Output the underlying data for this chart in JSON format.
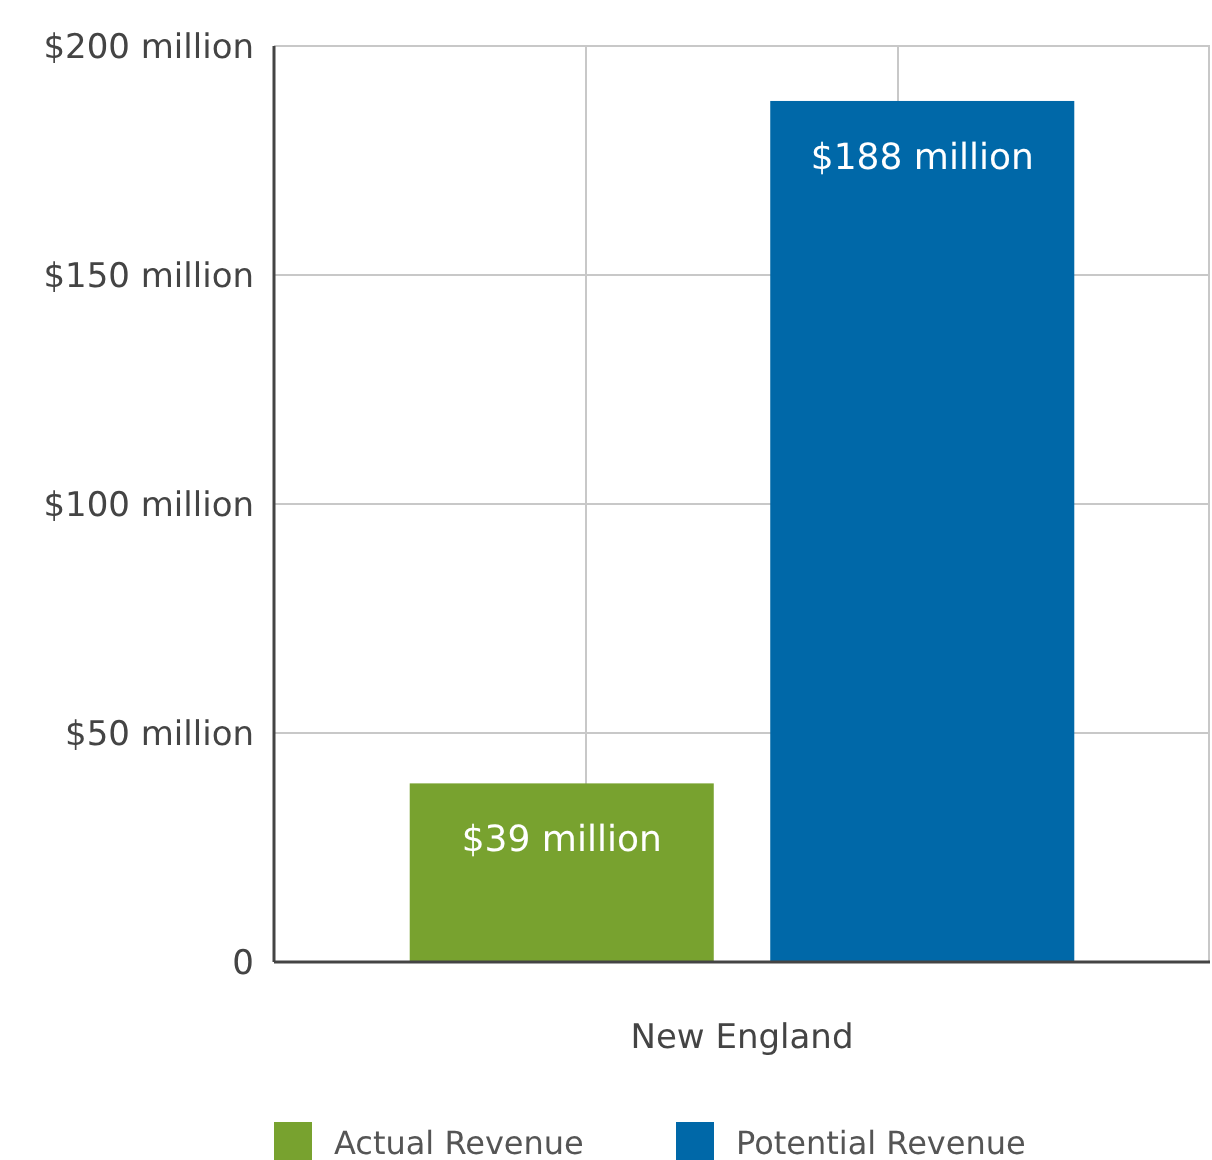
{
  "chart_data": {
    "type": "bar",
    "categories": [
      "New England"
    ],
    "series": [
      {
        "name": "Actual Revenue",
        "color": "#78a22f",
        "values": [
          39
        ],
        "value_labels": [
          "$39 million"
        ]
      },
      {
        "name": "Potential Revenue",
        "color": "#0068a8",
        "values": [
          188
        ],
        "value_labels": [
          "$188 million"
        ]
      }
    ],
    "ylim": [
      0,
      200
    ],
    "yticks": [
      {
        "value": 0,
        "label": "0"
      },
      {
        "value": 50,
        "label": "$50 million"
      },
      {
        "value": 100,
        "label": "$100 million"
      },
      {
        "value": 150,
        "label": "$150 million"
      },
      {
        "value": 200,
        "label": "$200 million"
      }
    ],
    "grid": true,
    "legend": "bottom"
  }
}
